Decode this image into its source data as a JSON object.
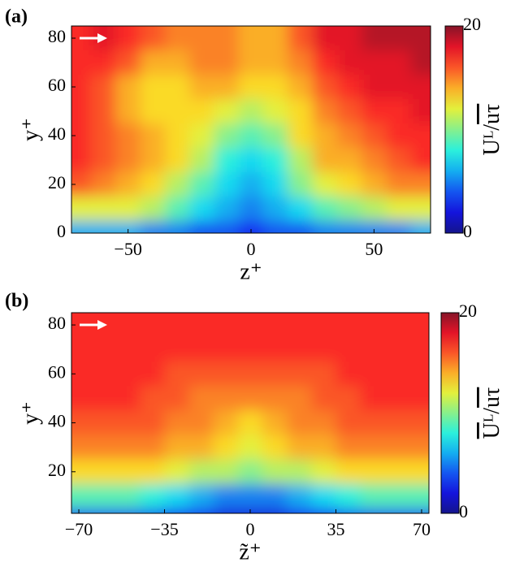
{
  "chart_data": [
    {
      "type": "heatmap",
      "panel_label": "(a)",
      "xlabel": "z⁺",
      "ylabel": "y⁺",
      "colorbar_label": [
        "Uᴸ/",
        "uτ"
      ],
      "colormap": "jet",
      "x": [
        -70,
        -60,
        -50,
        -40,
        -30,
        -20,
        -10,
        0,
        10,
        20,
        30,
        40,
        50,
        60,
        70
      ],
      "y": [
        80,
        70,
        60,
        50,
        40,
        30,
        20,
        10,
        0
      ],
      "z": [
        [
          17,
          18,
          17,
          16,
          15,
          15,
          15,
          14,
          14,
          16,
          18,
          18,
          19,
          19,
          19
        ],
        [
          17,
          17,
          16,
          14,
          14,
          15,
          15,
          14,
          14,
          15,
          17,
          18,
          18,
          18,
          19
        ],
        [
          17,
          16,
          14,
          13,
          13,
          14,
          14,
          13,
          13,
          14,
          16,
          17,
          18,
          18,
          18
        ],
        [
          17,
          16,
          14,
          13,
          13,
          13,
          12,
          11,
          12,
          13,
          15,
          16,
          17,
          17,
          18
        ],
        [
          17,
          16,
          15,
          14,
          13,
          12,
          10,
          9,
          10,
          13,
          14,
          15,
          16,
          17,
          17
        ],
        [
          17,
          16,
          15,
          14,
          13,
          11,
          8,
          7,
          8,
          11,
          14,
          14,
          15,
          16,
          17
        ],
        [
          16,
          15,
          14,
          13,
          11,
          9,
          7,
          6,
          7,
          10,
          12,
          13,
          14,
          15,
          15
        ],
        [
          12,
          12,
          12,
          11,
          9,
          7,
          6,
          5,
          6,
          7,
          9,
          10,
          11,
          12,
          12
        ],
        [
          6,
          6,
          6,
          5,
          5,
          4,
          4,
          3,
          4,
          4,
          5,
          5,
          5,
          5,
          6
        ]
      ],
      "xlim": [
        -73,
        73
      ],
      "ylim": [
        0,
        85
      ],
      "xticks": [
        {
          "value": -50,
          "label": "−50"
        },
        0,
        50
      ],
      "yticks": [
        0,
        20,
        40,
        60,
        80
      ],
      "clim": [
        0,
        20
      ],
      "cticks": [
        0,
        20
      ]
    },
    {
      "type": "heatmap",
      "panel_label": "(b)",
      "xlabel": "z̃⁺",
      "ylabel": "y⁺",
      "colorbar_label": [
        "U",
        "ᴸ/",
        "uτ"
      ],
      "colormap": "jet",
      "x": [
        -70,
        -60,
        -50,
        -40,
        -30,
        -20,
        -10,
        0,
        10,
        20,
        30,
        40,
        50,
        60,
        70
      ],
      "y": [
        80,
        70,
        60,
        50,
        40,
        30,
        20,
        10,
        0
      ],
      "z": [
        [
          17,
          17,
          17,
          17,
          17,
          17,
          17,
          17,
          17,
          17,
          17,
          17,
          17,
          17,
          17
        ],
        [
          17,
          17,
          17,
          17,
          17,
          17,
          17,
          17,
          17,
          17,
          17,
          17,
          17,
          17,
          17
        ],
        [
          17,
          17,
          17,
          17,
          16,
          16,
          16,
          16,
          16,
          16,
          16,
          17,
          17,
          17,
          17
        ],
        [
          17,
          17,
          17,
          16,
          16,
          15,
          15,
          15,
          15,
          15,
          16,
          16,
          17,
          17,
          17
        ],
        [
          16,
          16,
          16,
          16,
          15,
          15,
          14,
          13,
          14,
          15,
          15,
          16,
          16,
          16,
          16
        ],
        [
          15,
          15,
          15,
          15,
          14,
          14,
          13,
          12,
          13,
          14,
          14,
          15,
          15,
          15,
          15
        ],
        [
          13,
          13,
          13,
          13,
          12,
          11,
          11,
          10,
          11,
          11,
          12,
          13,
          13,
          13,
          13
        ],
        [
          9,
          9,
          9,
          8,
          7,
          6,
          5,
          5,
          5,
          6,
          7,
          8,
          9,
          9,
          9
        ],
        [
          4,
          4,
          4,
          4,
          3,
          3,
          2,
          2,
          2,
          3,
          3,
          4,
          4,
          4,
          4
        ]
      ],
      "xlim": [
        -73,
        73
      ],
      "ylim": [
        3,
        85
      ],
      "xticks": [
        {
          "value": -70,
          "label": "−70"
        },
        {
          "value": -35,
          "label": "−35"
        },
        0,
        35,
        70
      ],
      "yticks": [
        20,
        40,
        60,
        80
      ],
      "clim": [
        0,
        20
      ],
      "cticks": [
        0,
        20
      ]
    }
  ]
}
